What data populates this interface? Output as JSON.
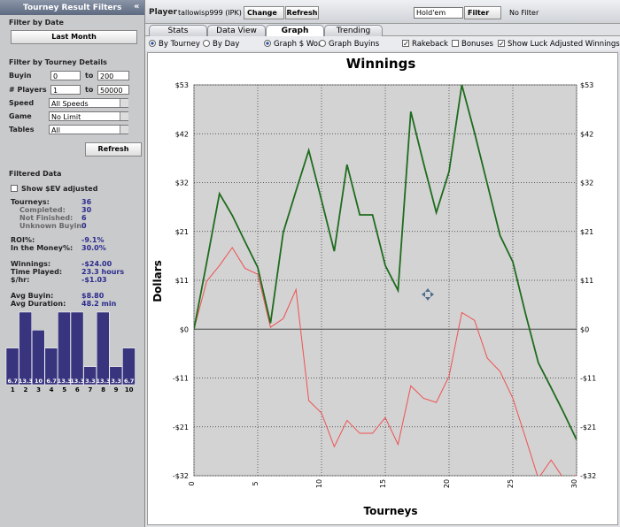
{
  "left_panel": {
    "title": "Tourney Result Filters",
    "collapse": "«",
    "date_heading": "Filter by Date",
    "date_button": "Last Month",
    "details_heading": "Filter by Tourney Details",
    "ranges": [
      {
        "label": "Buyin",
        "min": "0",
        "sep": "to",
        "max": "200"
      },
      {
        "label": "# Players",
        "min": "1",
        "sep": "to",
        "max": "50000"
      }
    ],
    "selects": [
      {
        "label": "Speed",
        "value": "All Speeds"
      },
      {
        "label": "Game",
        "value": "No Limit"
      },
      {
        "label": "Tables",
        "value": "All"
      }
    ],
    "refresh": "Refresh",
    "filtered_heading": "Filtered Data",
    "ev_checkbox": "Show $EV adjusted",
    "stats": [
      [
        {
          "label": "Tourneys:",
          "value": "36"
        },
        {
          "label": "Completed:",
          "value": "30"
        },
        {
          "label": "Not Finished:",
          "value": "6"
        },
        {
          "label": "Unknown Buyin:",
          "value": "0"
        }
      ],
      [
        {
          "label": "ROI%:",
          "value": "-9.1%"
        },
        {
          "label": "In the Money%:",
          "value": "30.0%"
        }
      ],
      [
        {
          "label": "Winnings:",
          "value": "-$24.00"
        },
        {
          "label": "Time Played:",
          "value": "23.3 hours"
        },
        {
          "label": "$/hr:",
          "value": "-$1.03"
        }
      ],
      [
        {
          "label": "Avg Buyin:",
          "value": "$8.80"
        },
        {
          "label": "Avg Duration:",
          "value": "48.2 min"
        }
      ]
    ]
  },
  "top_bar": {
    "player_label": "Player",
    "player": "tallowisp999 (IPK)",
    "change": "Change",
    "refresh": "Refresh",
    "game": "Hold'em",
    "filter": "Filter",
    "filter_status": "No Filter"
  },
  "tabs": [
    "Stats",
    "Data View",
    "Graph",
    "Trending"
  ],
  "active_tab": 2,
  "options": {
    "radios_x": [
      {
        "label": "By Tourney",
        "checked": true
      },
      {
        "label": "By Day",
        "checked": false
      }
    ],
    "radios_y": [
      {
        "label": "Graph $ Won",
        "checked": true
      },
      {
        "label": "Graph Buyins",
        "checked": false
      }
    ],
    "checkboxes": [
      {
        "label": "Rakeback",
        "checked": true
      },
      {
        "label": "Bonuses",
        "checked": false
      },
      {
        "label": "Show Luck Adjusted Winnings",
        "checked": true
      }
    ]
  },
  "chart_data": [
    {
      "type": "line",
      "title": "Winnings",
      "x_label": "Tourneys",
      "y_label": "Dollars",
      "x": [
        0,
        1,
        2,
        3,
        4,
        5,
        6,
        7,
        8,
        9,
        10,
        11,
        12,
        13,
        14,
        15,
        16,
        17,
        18,
        19,
        20,
        21,
        22,
        23,
        24,
        25,
        26,
        27,
        28,
        29,
        30
      ],
      "series": [
        {
          "color": "#1e6b1e",
          "values": [
            0,
            14.5,
            29.4,
            24.7,
            19,
            13.4,
            1.3,
            21,
            30,
            38.8,
            28,
            16.9,
            35.7,
            24.8,
            24.8,
            13.8,
            8.4,
            47.2,
            36,
            25.3,
            34.2,
            53,
            42.6,
            31.5,
            20.3,
            14.6,
            3.3,
            -7.3,
            -12.7,
            -18.2,
            -24
          ]
        },
        {
          "color": "#f05050",
          "values": [
            0,
            10.4,
            13.8,
            17.7,
            13.2,
            11.9,
            0.4,
            2.3,
            8.6,
            -15.5,
            -18.2,
            -25.5,
            -19.8,
            -22.6,
            -22.6,
            -19.2,
            -25,
            -12.3,
            -15,
            -15.9,
            -10.2,
            3.6,
            1.9,
            -6.3,
            -9.2,
            -15,
            -23.6,
            -32.4,
            -28.4,
            -32.5,
            -31.7
          ]
        }
      ],
      "xlim": [
        0,
        30
      ],
      "xticks": [
        0,
        5,
        10,
        15,
        20,
        25,
        30
      ],
      "ylim": [
        -31.8,
        53
      ],
      "yticks": [
        {
          "value": 53,
          "label": "$53"
        },
        {
          "value": 42.4,
          "label": "$42"
        },
        {
          "value": 31.8,
          "label": "$32"
        },
        {
          "value": 21.2,
          "label": "$21"
        },
        {
          "value": 10.6,
          "label": "$11"
        },
        {
          "value": 0,
          "label": "$0"
        },
        {
          "value": -10.6,
          "label": "-$11"
        },
        {
          "value": -21.2,
          "label": "-$21"
        },
        {
          "value": -31.8,
          "label": "-$32"
        }
      ],
      "grid": true
    },
    {
      "type": "bar",
      "categories": [
        "1",
        "2",
        "3",
        "4",
        "5",
        "6",
        "7",
        "8",
        "9",
        "10"
      ],
      "values": [
        6.7,
        13.3,
        10.0,
        6.7,
        13.3,
        13.3,
        3.3,
        13.3,
        3.3,
        6.7
      ],
      "color": "#38347e"
    }
  ]
}
